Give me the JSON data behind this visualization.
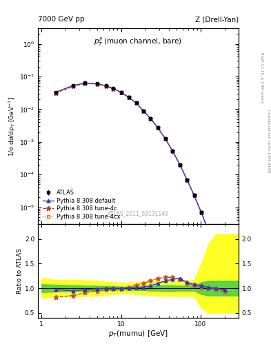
{
  "title_left": "7000 GeV pp",
  "title_right": "Z (Drell-Yan)",
  "inner_title": "$p_T^{ll}$ (muon channel, bare)",
  "watermark": "ATLAS_2011_S9131140",
  "right_label_top": "Rivet 3.1.10, ≥ 3.4M events",
  "right_label_bottom": "mcplots.cern.ch [arXiv:1306.3436]",
  "ylabel_main": "1/σ dσ/dp$_T$ [GeV$^{-1}$]",
  "ylabel_ratio": "Ratio to ATLAS",
  "xlabel": "$p_T$(mumu) [GeV]",
  "xlim": [
    0.9,
    300
  ],
  "ylim_main": [
    3e-06,
    3.0
  ],
  "ylim_ratio": [
    0.4,
    2.3
  ],
  "ratio_yticks": [
    0.5,
    1.0,
    1.5,
    2.0
  ],
  "pt_data": [
    1.5,
    2.5,
    3.5,
    5.0,
    6.5,
    8.0,
    10.0,
    12.5,
    15.5,
    19.0,
    23.5,
    29.0,
    36.0,
    44.5,
    55.0,
    67.5,
    83.0,
    102.0,
    126.0,
    156.0,
    200.0
  ],
  "atlas_values": [
    0.033,
    0.053,
    0.063,
    0.06,
    0.052,
    0.043,
    0.033,
    0.023,
    0.0155,
    0.009,
    0.0052,
    0.0027,
    0.00125,
    0.00052,
    0.0002,
    7e-05,
    2.3e-05,
    7e-06,
    1.9e-06,
    4.2e-07,
    7.5e-08
  ],
  "atlas_errors": [
    0.0015,
    0.0015,
    0.0015,
    0.0015,
    0.0012,
    0.001,
    0.0008,
    0.0006,
    0.0004,
    0.00025,
    0.00015,
    8e-05,
    4e-05,
    1.5e-05,
    6e-06,
    2.5e-06,
    8e-07,
    2.5e-07,
    7e-08,
    1.5e-08,
    3e-09
  ],
  "pythia_default_values": [
    0.033,
    0.053,
    0.063,
    0.06,
    0.052,
    0.043,
    0.033,
    0.023,
    0.0155,
    0.009,
    0.0052,
    0.0027,
    0.00125,
    0.00052,
    0.0002,
    7e-05,
    2.3e-05,
    7e-06,
    1.9e-06,
    4.2e-07,
    7.5e-08
  ],
  "pythia_4c_values": [
    0.031,
    0.05,
    0.061,
    0.059,
    0.051,
    0.042,
    0.033,
    0.023,
    0.0155,
    0.009,
    0.0052,
    0.0027,
    0.00125,
    0.00052,
    0.0002,
    7e-05,
    2.3e-05,
    7e-06,
    1.9e-06,
    4.2e-07,
    7.5e-08
  ],
  "pythia_4cx_values": [
    0.031,
    0.05,
    0.061,
    0.059,
    0.051,
    0.042,
    0.033,
    0.023,
    0.0155,
    0.009,
    0.0052,
    0.0027,
    0.00125,
    0.00052,
    0.0002,
    7e-05,
    2.3e-05,
    7e-06,
    1.9e-06,
    4.2e-07,
    7.5e-08
  ],
  "ratio_default": [
    0.97,
    0.95,
    0.97,
    0.99,
    1.0,
    1.0,
    1.0,
    1.0,
    1.01,
    1.02,
    1.05,
    1.1,
    1.15,
    1.18,
    1.2,
    1.12,
    1.08,
    1.05,
    1.02,
    1.0,
    0.97
  ],
  "ratio_4c": [
    0.82,
    0.85,
    0.91,
    0.95,
    0.97,
    0.98,
    0.99,
    1.02,
    1.06,
    1.1,
    1.15,
    1.2,
    1.22,
    1.22,
    1.18,
    1.1,
    1.05,
    1.02,
    1.0,
    0.98,
    0.93
  ],
  "ratio_4cx": [
    0.82,
    0.85,
    0.91,
    0.95,
    0.97,
    0.98,
    0.99,
    1.02,
    1.06,
    1.1,
    1.15,
    1.2,
    1.22,
    1.22,
    1.18,
    1.1,
    1.05,
    1.02,
    1.0,
    0.98,
    0.93
  ],
  "color_atlas": "black",
  "color_default": "#3333cc",
  "color_4c": "#cc2222",
  "color_4cx": "#cc7722",
  "yellow_band_x": [
    1.0,
    1.5,
    2.5,
    3.5,
    5.0,
    6.5,
    8.0,
    10.0,
    12.5,
    15.5,
    19.0,
    23.5,
    29.0,
    36.0,
    44.5,
    55.0,
    67.5,
    83.0,
    102.0,
    126.0,
    156.0,
    200.0,
    250.0,
    300.0
  ],
  "yellow_band_lo": [
    0.8,
    0.83,
    0.83,
    0.84,
    0.85,
    0.87,
    0.88,
    0.89,
    0.89,
    0.88,
    0.87,
    0.86,
    0.85,
    0.84,
    0.84,
    0.84,
    0.84,
    0.84,
    0.6,
    0.5,
    0.5,
    0.5,
    0.5,
    0.5
  ],
  "yellow_band_hi": [
    1.2,
    1.17,
    1.17,
    1.16,
    1.15,
    1.13,
    1.12,
    1.11,
    1.11,
    1.12,
    1.13,
    1.14,
    1.15,
    1.16,
    1.16,
    1.16,
    1.16,
    1.16,
    1.5,
    1.9,
    2.1,
    2.1,
    2.1,
    2.1
  ],
  "green_band_x": [
    1.0,
    1.5,
    2.5,
    3.5,
    5.0,
    6.5,
    8.0,
    10.0,
    12.5,
    15.5,
    19.0,
    23.5,
    29.0,
    36.0,
    44.5,
    55.0,
    67.5,
    83.0,
    102.0,
    126.0,
    156.0,
    200.0,
    250.0,
    300.0
  ],
  "green_band_lo": [
    0.92,
    0.93,
    0.94,
    0.95,
    0.95,
    0.96,
    0.96,
    0.97,
    0.97,
    0.96,
    0.96,
    0.95,
    0.95,
    0.94,
    0.94,
    0.95,
    0.95,
    0.95,
    0.88,
    0.85,
    0.85,
    0.85,
    0.85,
    0.85
  ],
  "green_band_hi": [
    1.08,
    1.07,
    1.06,
    1.05,
    1.05,
    1.04,
    1.04,
    1.03,
    1.03,
    1.04,
    1.04,
    1.05,
    1.05,
    1.06,
    1.06,
    1.05,
    1.05,
    1.05,
    1.12,
    1.15,
    1.15,
    1.15,
    1.15,
    1.15
  ]
}
